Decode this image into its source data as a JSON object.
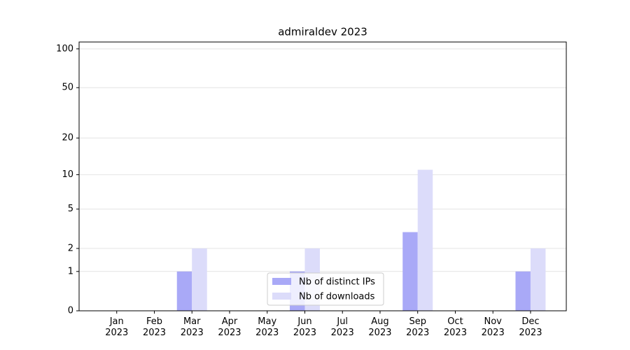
{
  "chart_data": {
    "type": "bar",
    "title": "admiraldev 2023",
    "categories": [
      "Jan\n2023",
      "Feb\n2023",
      "Mar\n2023",
      "Apr\n2023",
      "May\n2023",
      "Jun\n2023",
      "Jul\n2023",
      "Aug\n2023",
      "Sep\n2023",
      "Oct\n2023",
      "Nov\n2023",
      "Dec\n2023"
    ],
    "series": [
      {
        "name": "Nb of distinct IPs",
        "color": "#a9a9f7",
        "values": [
          0,
          0,
          1,
          0,
          0,
          1,
          0,
          0,
          3,
          0,
          0,
          1
        ]
      },
      {
        "name": "Nb of downloads",
        "color": "#dcdcfa",
        "values": [
          0,
          0,
          2,
          0,
          0,
          2,
          0,
          0,
          11,
          0,
          0,
          2
        ]
      }
    ],
    "yscale": "log1p",
    "ylim": [
      0,
      113
    ],
    "yticks": [
      0,
      1,
      2,
      5,
      10,
      20,
      50,
      100
    ],
    "grid": true,
    "legend": "lower center"
  }
}
